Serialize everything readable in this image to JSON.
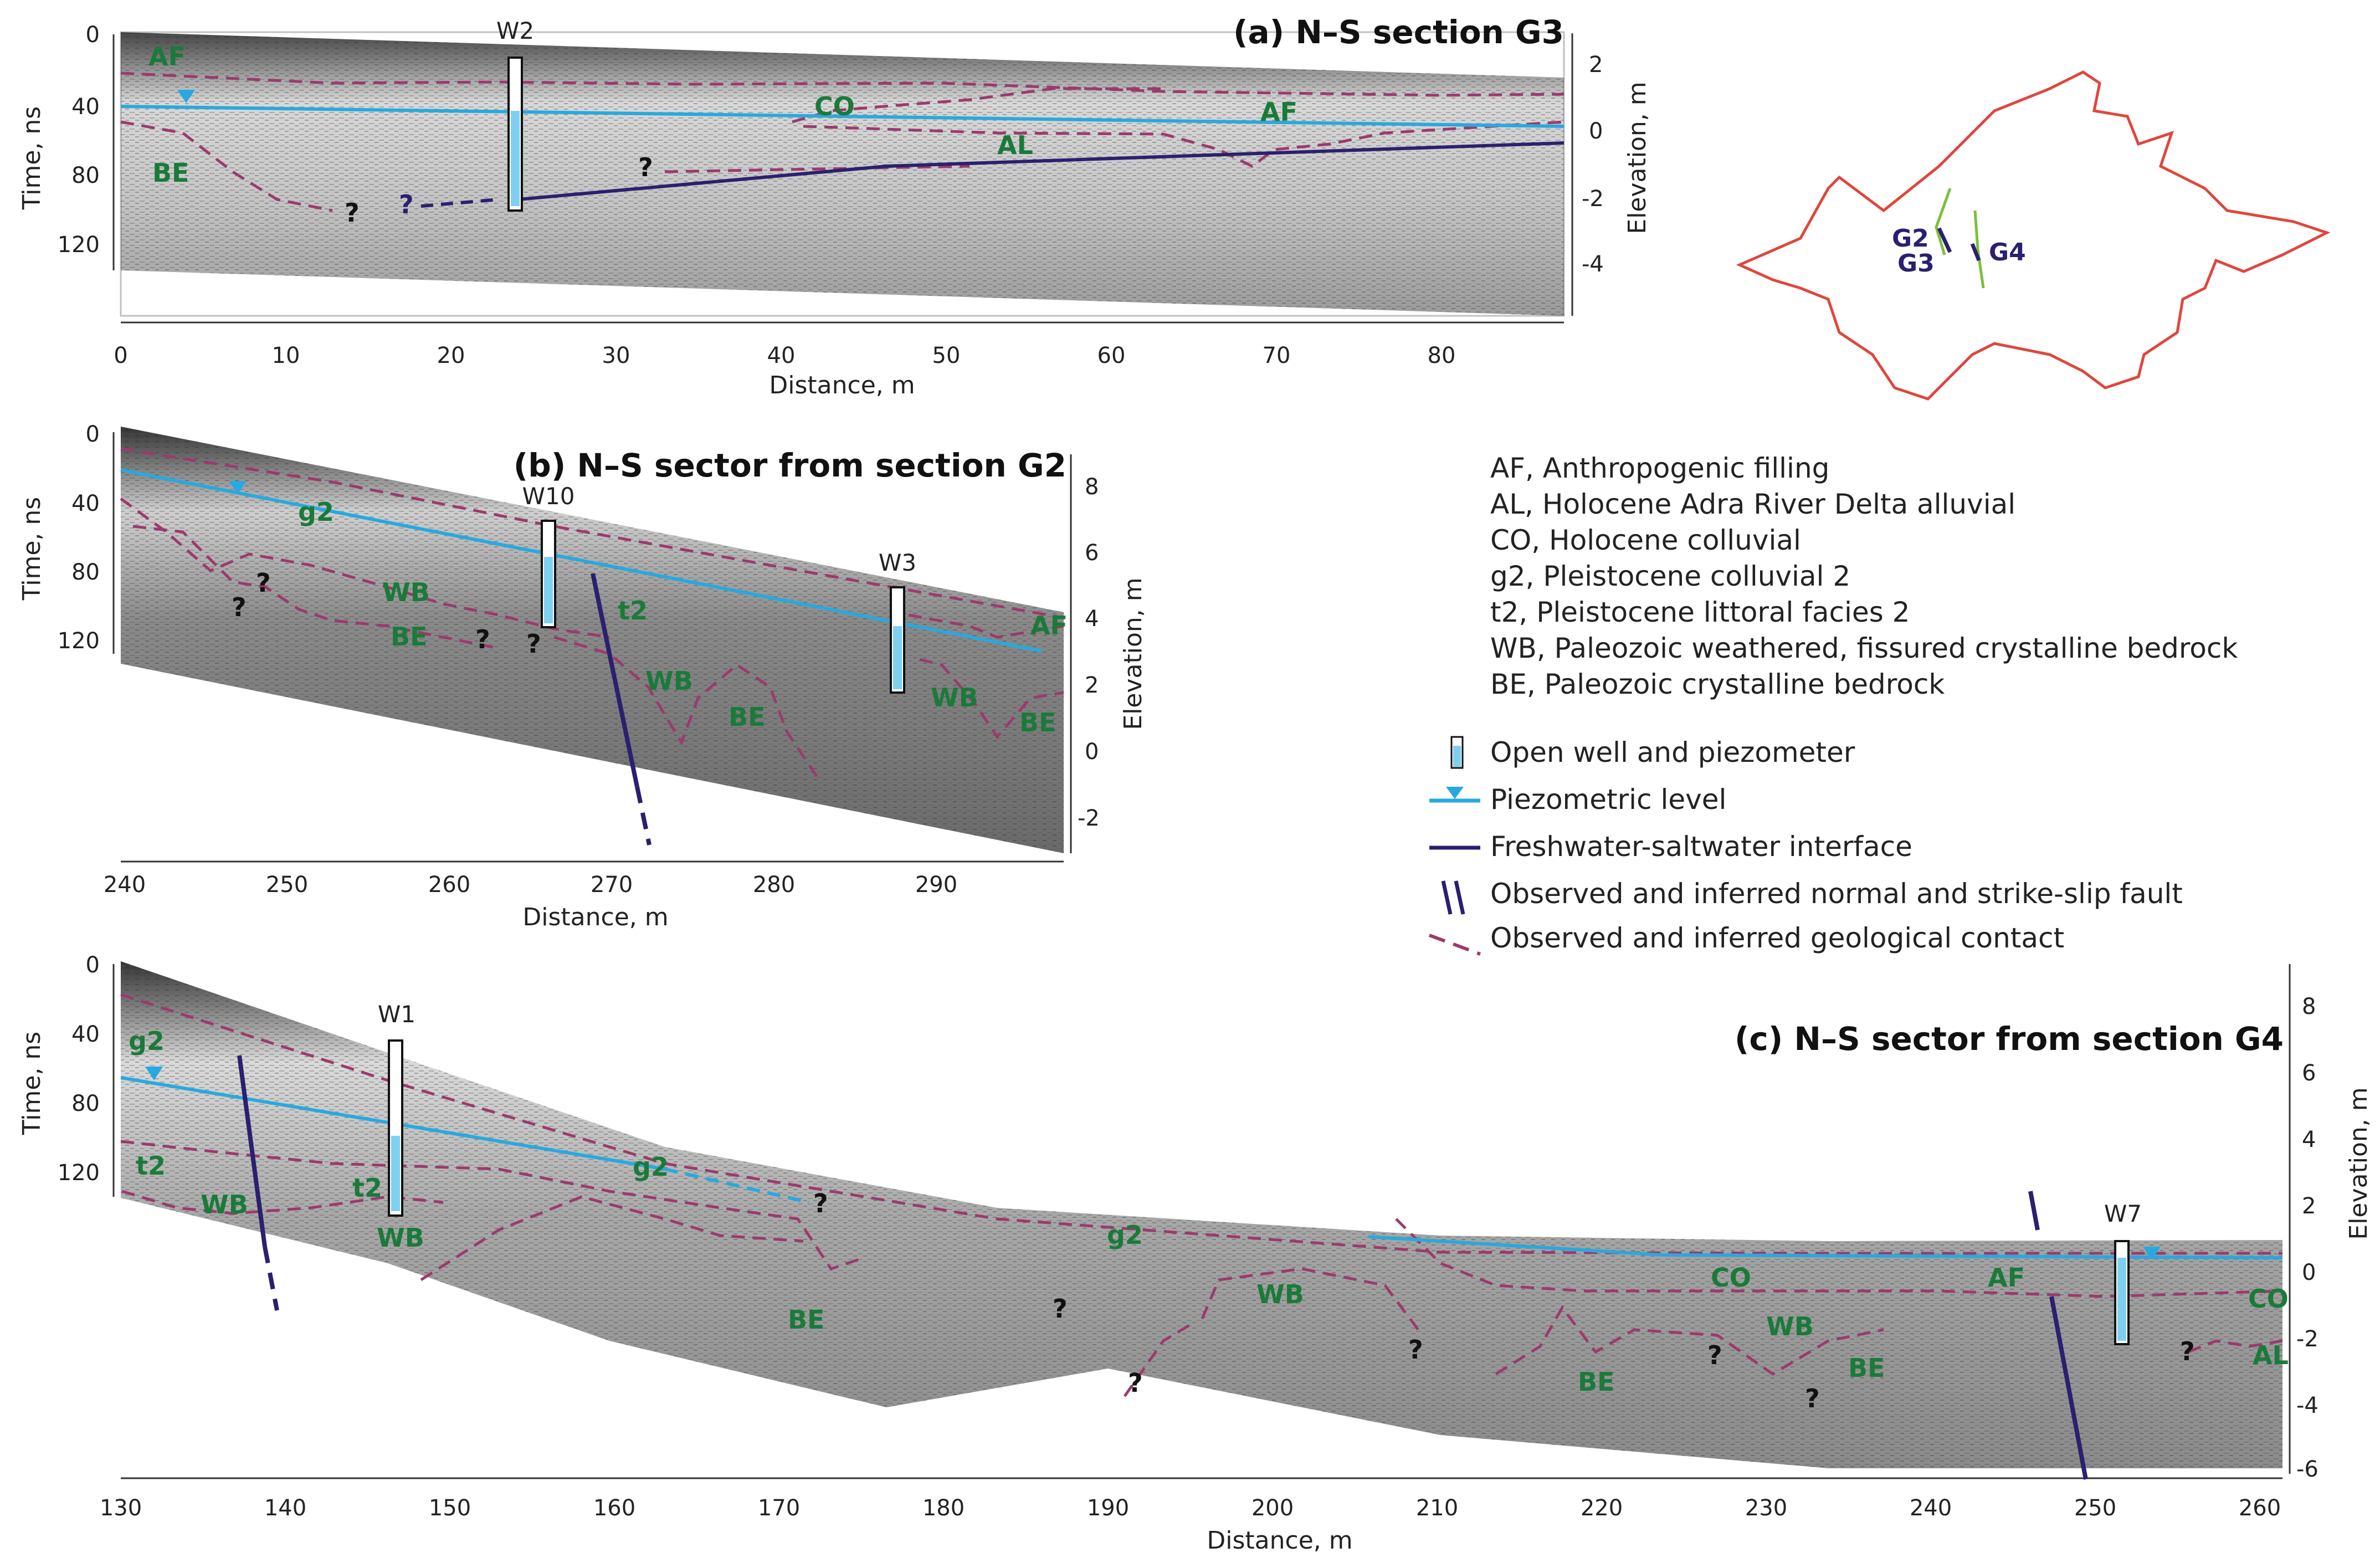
{
  "figure": {
    "panels": [
      {
        "id": "a",
        "title": "(a) N–S section G3",
        "xlabel": "Distance, m",
        "ylabel": "Time, ns",
        "y2label": "Elevation, m",
        "xticks": [
          "0",
          "10",
          "20",
          "30",
          "40",
          "50",
          "60",
          "70",
          "80"
        ],
        "yticks": [
          "0",
          "40",
          "80",
          "120"
        ],
        "y2ticks": [
          "2",
          "0",
          "-2",
          "-4"
        ],
        "wells": [
          "W2"
        ],
        "units": [
          "AF",
          "BE",
          "CO",
          "AF",
          "AL"
        ],
        "questions": [
          "?",
          "?",
          "?"
        ]
      },
      {
        "id": "b",
        "title": "(b) N–S sector from section G2",
        "xlabel": "Distance, m",
        "ylabel": "Time, ns",
        "y2label": "Elevation, m",
        "xticks": [
          "240",
          "250",
          "260",
          "270",
          "280",
          "290"
        ],
        "yticks": [
          "0",
          "40",
          "80",
          "120"
        ],
        "y2ticks": [
          "8",
          "6",
          "4",
          "2",
          "0",
          "-2"
        ],
        "wells": [
          "W10",
          "W3"
        ],
        "units": [
          "g2",
          "WB",
          "BE",
          "t2",
          "WB",
          "BE",
          "WB",
          "BE",
          "AF"
        ],
        "questions": [
          "?",
          "?",
          "?",
          "?"
        ]
      },
      {
        "id": "c",
        "title": "(c) N–S sector from section G4",
        "xlabel": "Distance, m",
        "ylabel": "Time, ns",
        "y2label": "Elevation, m",
        "xticks": [
          "130",
          "140",
          "150",
          "160",
          "170",
          "180",
          "190",
          "200",
          "210",
          "220",
          "230",
          "240",
          "250",
          "260"
        ],
        "yticks": [
          "0",
          "40",
          "80",
          "120"
        ],
        "y2ticks": [
          "8",
          "6",
          "4",
          "2",
          "0",
          "-2",
          "-4",
          "-6"
        ],
        "wells": [
          "W1",
          "W7"
        ],
        "units": [
          "g2",
          "t2",
          "WB",
          "t2",
          "WB",
          "g2",
          "g2",
          "BE",
          "WB",
          "CO",
          "WB",
          "BE",
          "BE",
          "AF",
          "CO",
          "AL"
        ],
        "questions": [
          "?",
          "?",
          "?",
          "?",
          "?",
          "?",
          "?"
        ]
      }
    ],
    "map": {
      "labels": [
        "G2",
        "G3",
        "G4"
      ]
    },
    "legend": {
      "units": [
        "AF, Anthropogenic filling",
        "AL, Holocene Adra River Delta alluvial",
        "CO, Holocene colluvial",
        "g2, Pleistocene colluvial 2",
        "t2, Pleistocene littoral facies 2",
        "WB, Paleozoic weathered, fissured crystalline bedrock",
        "BE, Paleozoic crystalline bedrock"
      ],
      "symbols": [
        "Open well and piezometer",
        "Piezometric level",
        "Freshwater-saltwater interface",
        "Observed and inferred normal and strike-slip fault",
        "Observed and inferred geological contact"
      ]
    },
    "colors": {
      "piezometric": "#27a9e0",
      "interface": "#2a2070",
      "contact": "#9b3a6e",
      "unit_label": "#1a7a3a",
      "map_outline": "#e0463c",
      "map_sections": "#7dbf3a"
    }
  }
}
